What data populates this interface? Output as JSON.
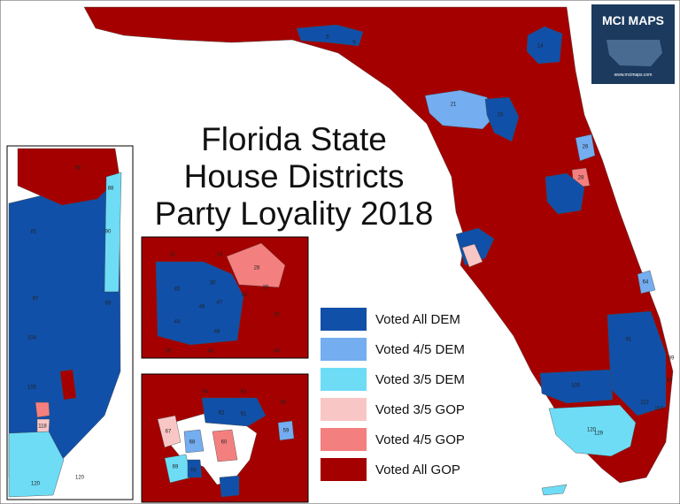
{
  "title": {
    "lines": [
      "Florida State",
      "House Districts",
      "Party Loyality 2018"
    ]
  },
  "logo": {
    "name": "MCI MAPS",
    "url": "www.mcimaps.com"
  },
  "legend": [
    {
      "label": "Voted All DEM",
      "color": "#1150a8"
    },
    {
      "label": "Voted 4/5 DEM",
      "color": "#74adf0"
    },
    {
      "label": "Voted 3/5 DEM",
      "color": "#6edcf5"
    },
    {
      "label": "Voted 3/5 GOP",
      "color": "#f9c6c6"
    },
    {
      "label": "Voted 4/5 GOP",
      "color": "#f47f7f"
    },
    {
      "label": "Voted All GOP",
      "color": "#a50000"
    }
  ],
  "districts": {
    "main": [
      "5",
      "6",
      "14",
      "21",
      "20",
      "26",
      "28",
      "64",
      "91",
      "105",
      "120",
      "129",
      "112",
      "113",
      "89",
      "93"
    ],
    "left_inset": [
      "85",
      "88",
      "81",
      "90",
      "97",
      "93",
      "104",
      "105",
      "118",
      "120",
      "120"
    ],
    "mid_inset": [
      "31",
      "24",
      "28",
      "30",
      "29",
      "45",
      "46",
      "47",
      "49",
      "44",
      "48",
      "43",
      "39",
      "40",
      "15"
    ],
    "bottom_inset": [
      "64",
      "63",
      "62",
      "61",
      "58",
      "59",
      "67",
      "68",
      "60",
      "69",
      "70"
    ]
  }
}
